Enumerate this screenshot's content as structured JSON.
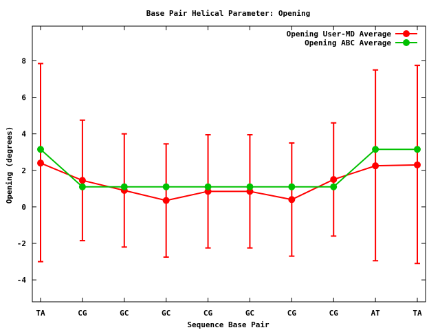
{
  "chart_data": {
    "type": "line",
    "title": "Base Pair Helical Parameter: Opening",
    "xlabel": "Sequence Base Pair",
    "ylabel": "Opening (degrees)",
    "categories": [
      "TA",
      "CG",
      "GC",
      "GC",
      "CG",
      "GC",
      "CG",
      "CG",
      "AT",
      "TA"
    ],
    "ylim": [
      -5.2,
      9.9
    ],
    "yticks": [
      -4,
      -2,
      0,
      2,
      4,
      6,
      8
    ],
    "ytick_labels": [
      "-4",
      "-2",
      "0",
      "2",
      "4",
      "6",
      "8"
    ],
    "grid": false,
    "legend_position": "top-right",
    "series": [
      {
        "name": "Opening User-MD Average",
        "color": "#ff0000",
        "values": [
          2.4,
          1.45,
          0.9,
          0.35,
          0.85,
          0.85,
          0.4,
          1.5,
          2.25,
          2.3
        ],
        "error_low": [
          -3.0,
          -1.85,
          -2.2,
          -2.75,
          -2.25,
          -2.25,
          -2.7,
          -1.6,
          -2.95,
          -3.1
        ],
        "error_high": [
          7.85,
          4.75,
          4.0,
          3.45,
          3.95,
          3.95,
          3.5,
          4.6,
          7.5,
          7.75
        ]
      },
      {
        "name": "Opening ABC Average",
        "color": "#00c000",
        "values": [
          3.15,
          1.1,
          1.1,
          1.1,
          1.1,
          1.1,
          1.1,
          1.1,
          3.15,
          3.15
        ]
      }
    ]
  }
}
